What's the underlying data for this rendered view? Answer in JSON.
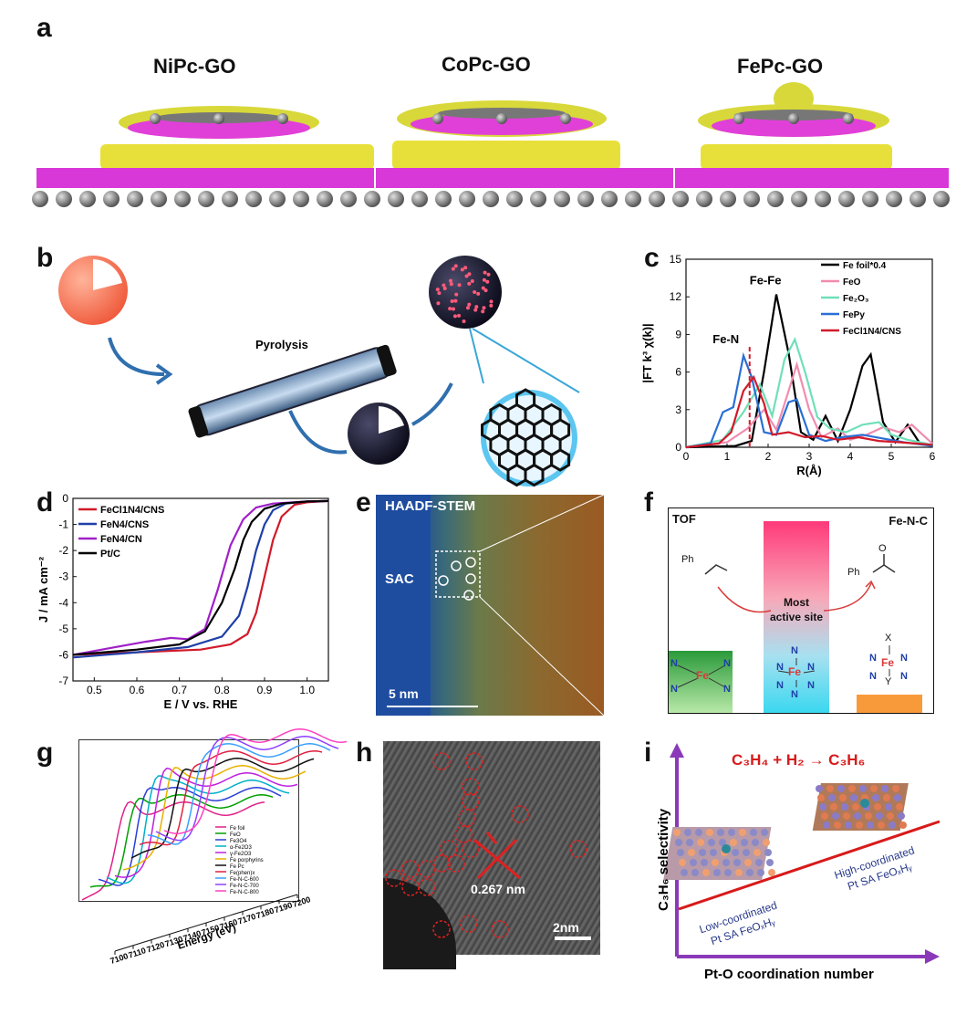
{
  "panel_labels": {
    "a": "a",
    "b": "b",
    "c": "c",
    "d": "d",
    "e": "e",
    "f": "f",
    "g": "g",
    "h": "h",
    "i": "i"
  },
  "panel_a": {
    "titles": [
      "NiPc-GO",
      "CoPc-GO",
      "FePc-GO"
    ]
  },
  "panel_b": {
    "label": "Pyrolysis"
  },
  "panel_c": {
    "chart_data": {
      "type": "line",
      "xlabel": "R(Å)",
      "ylabel": "|FT k³ χ(k)|",
      "xlim": [
        0,
        6
      ],
      "ylim": [
        0,
        15
      ],
      "xticks": [
        "0",
        "1",
        "2",
        "3",
        "4",
        "5",
        "6"
      ],
      "yticks": [
        "0",
        "3",
        "6",
        "9",
        "12",
        "15"
      ],
      "annotations": [
        "Fe-Fe",
        "Fe-N"
      ],
      "legend_position": "top-right",
      "series": [
        {
          "name": "Fe foil*0.4",
          "color": "#000000",
          "x": [
            0,
            1.2,
            1.6,
            1.9,
            2.2,
            2.5,
            2.8,
            3.1,
            3.4,
            3.7,
            4.0,
            4.3,
            4.5,
            4.8,
            5.1,
            5.4,
            5.7,
            6.0
          ],
          "y": [
            0,
            0.1,
            0.5,
            6.0,
            12.2,
            7.5,
            1.2,
            0.6,
            2.5,
            0.5,
            3.0,
            6.5,
            7.4,
            2.0,
            0.4,
            1.8,
            0.3,
            0.1
          ]
        },
        {
          "name": "FeO",
          "color": "#f08cb0",
          "x": [
            0,
            1.0,
            1.5,
            1.9,
            2.2,
            2.5,
            2.7,
            3.0,
            3.3,
            3.7,
            4.0,
            4.4,
            4.8,
            5.2,
            5.5,
            6.0
          ],
          "y": [
            0,
            0.4,
            1.5,
            3.0,
            1.4,
            4.5,
            6.6,
            3.0,
            0.8,
            1.5,
            0.6,
            1.0,
            1.6,
            1.2,
            1.8,
            0.3
          ]
        },
        {
          "name": "Fe₂O₃",
          "color": "#6fe0b8",
          "x": [
            0,
            0.9,
            1.4,
            1.8,
            2.1,
            2.4,
            2.65,
            2.9,
            3.2,
            3.5,
            3.9,
            4.3,
            4.7,
            5.0,
            5.4,
            6.0
          ],
          "y": [
            0,
            0.6,
            2.8,
            5.0,
            2.5,
            7.0,
            8.6,
            6.0,
            2.4,
            1.5,
            1.2,
            1.8,
            2.0,
            1.0,
            0.6,
            0.2
          ]
        },
        {
          "name": "FePy",
          "color": "#2a6fd6",
          "x": [
            0,
            0.6,
            0.9,
            1.15,
            1.4,
            1.6,
            1.9,
            2.2,
            2.5,
            2.7,
            3.0,
            3.4,
            3.8,
            4.3,
            4.8,
            5.3,
            6.0
          ],
          "y": [
            0,
            0.3,
            2.8,
            3.2,
            7.3,
            5.6,
            1.2,
            1.0,
            3.6,
            3.8,
            1.0,
            0.5,
            0.8,
            1.0,
            0.7,
            0.4,
            0.1
          ]
        },
        {
          "name": "FeCl1N4/CNS",
          "color": "#d11a2a",
          "x": [
            0,
            0.8,
            1.1,
            1.4,
            1.65,
            1.9,
            2.1,
            2.5,
            2.9,
            3.3,
            3.7,
            4.2,
            4.7,
            5.2,
            6.0
          ],
          "y": [
            0,
            0.3,
            1.2,
            4.5,
            5.6,
            3.5,
            1.0,
            1.2,
            0.8,
            0.9,
            0.6,
            0.8,
            0.5,
            0.4,
            0.2
          ]
        }
      ]
    }
  },
  "panel_d": {
    "chart_data": {
      "type": "line",
      "xlabel": "E / V vs. RHE",
      "ylabel": "J / mA cm⁻²",
      "xlim": [
        0.45,
        1.05
      ],
      "ylim": [
        -7,
        0
      ],
      "xticks": [
        "0.5",
        "0.6",
        "0.7",
        "0.8",
        "0.9",
        "1.0"
      ],
      "yticks": [
        "0",
        "-1",
        "-2",
        "-3",
        "-4",
        "-5",
        "-6",
        "-7"
      ],
      "legend_position": "top-left",
      "series": [
        {
          "name": "FeCl1N4/CNS",
          "color": "#d11a2a",
          "x": [
            0.45,
            0.6,
            0.75,
            0.82,
            0.86,
            0.88,
            0.9,
            0.92,
            0.94,
            0.97,
            1.0,
            1.05
          ],
          "y": [
            -6.0,
            -5.9,
            -5.8,
            -5.6,
            -5.2,
            -4.4,
            -3.0,
            -1.6,
            -0.7,
            -0.25,
            -0.15,
            -0.1
          ]
        },
        {
          "name": "FeN4/CNS",
          "color": "#1f3fa8",
          "x": [
            0.45,
            0.6,
            0.72,
            0.8,
            0.84,
            0.86,
            0.88,
            0.9,
            0.92,
            0.95,
            1.0,
            1.05
          ],
          "y": [
            -6.1,
            -5.9,
            -5.7,
            -5.3,
            -4.5,
            -3.4,
            -2.0,
            -1.0,
            -0.45,
            -0.2,
            -0.12,
            -0.1
          ]
        },
        {
          "name": "FeN4/CN",
          "color": "#a020c8",
          "x": [
            0.45,
            0.55,
            0.62,
            0.68,
            0.72,
            0.76,
            0.79,
            0.82,
            0.85,
            0.88,
            0.92,
            1.0,
            1.05
          ],
          "y": [
            -6.0,
            -5.7,
            -5.5,
            -5.35,
            -5.4,
            -5.0,
            -3.5,
            -1.8,
            -0.8,
            -0.35,
            -0.2,
            -0.12,
            -0.1
          ]
        },
        {
          "name": "Pt/C",
          "color": "#000000",
          "x": [
            0.45,
            0.6,
            0.7,
            0.76,
            0.8,
            0.83,
            0.85,
            0.87,
            0.9,
            0.94,
            1.0,
            1.05
          ],
          "y": [
            -6.0,
            -5.8,
            -5.6,
            -5.1,
            -4.0,
            -2.7,
            -1.6,
            -0.9,
            -0.4,
            -0.2,
            -0.12,
            -0.1
          ]
        }
      ]
    }
  },
  "panel_e": {
    "title": "HAADF-STEM",
    "sac": "SAC",
    "scale": "5 nm"
  },
  "panel_f": {
    "tof": "TOF",
    "fenc": "Fe-N-C",
    "most": "Most",
    "active": "active site",
    "reactant": "Ph",
    "product": "Ph",
    "o": "O",
    "x": "X",
    "y": "Y",
    "n": "N",
    "fe": "Fe"
  },
  "panel_g": {
    "axis_label": "Energy (eV)",
    "ticks": [
      "7100",
      "7110",
      "7120",
      "7130",
      "7140",
      "7150",
      "7160",
      "7170",
      "7180",
      "7190",
      "7200"
    ],
    "legend": [
      {
        "name": "Fe foil",
        "color": "#e0208a"
      },
      {
        "name": "FeO",
        "color": "#00a000"
      },
      {
        "name": "Fe3O4",
        "color": "#2a3fd8"
      },
      {
        "name": "α-Fe2O3",
        "color": "#00b0c8"
      },
      {
        "name": "γ-Fe2O3",
        "color": "#c020e0"
      },
      {
        "name": "Fe porphyrins",
        "color": "#e8b000"
      },
      {
        "name": "Fe Pc",
        "color": "#101010"
      },
      {
        "name": "Fe(phen)x",
        "color": "#e02040"
      },
      {
        "name": "Fe-N-C-600",
        "color": "#3aa0ff"
      },
      {
        "name": "Fe-N-C-700",
        "color": "#9040ff"
      },
      {
        "name": "Fe-N-C-800",
        "color": "#ff40c0"
      }
    ]
  },
  "panel_h": {
    "spacing": "0.267 nm",
    "scale": "2nm"
  },
  "panel_i": {
    "equation_html": "C₃H₄ + H₂ → C₃H₆",
    "ylabel": "C₃H₆ selectivity",
    "xlabel": "Pt-O coordination number",
    "low1": "Low-coordinated",
    "low2": "Pt SA FeOₓHᵧ",
    "high1": "High-coordinated",
    "high2": "Pt SA FeOₓHᵧ"
  }
}
